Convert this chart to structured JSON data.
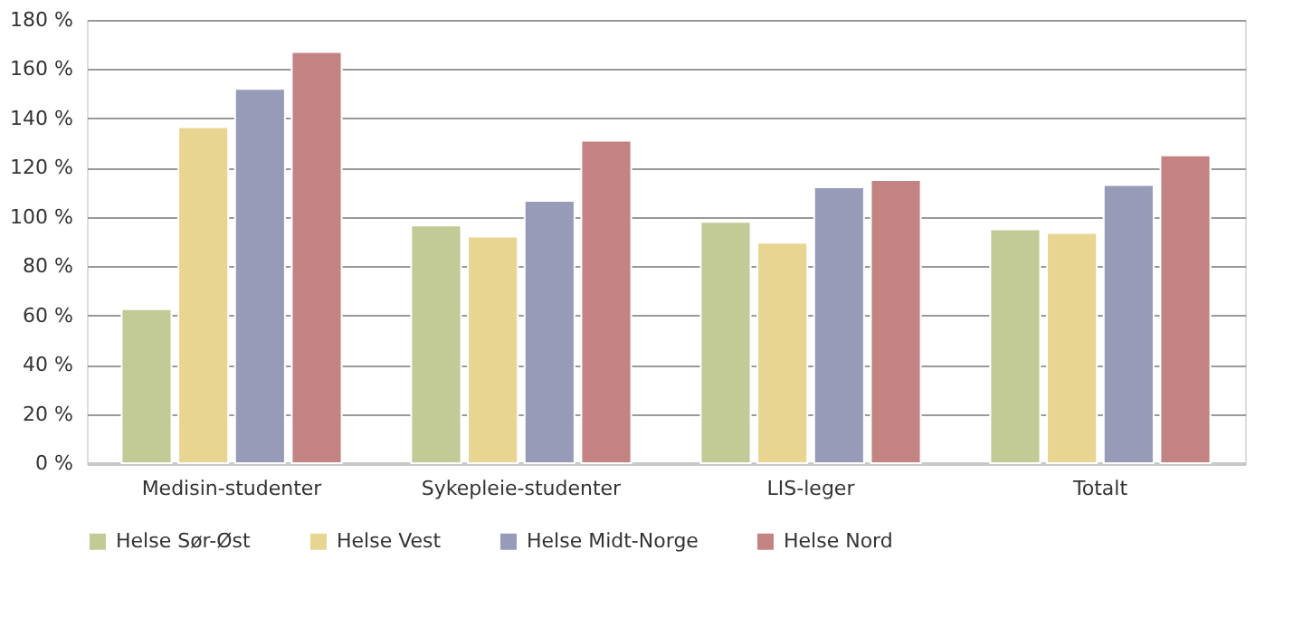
{
  "chart_data": {
    "type": "bar",
    "categories": [
      "Medisin-studenter",
      "Sykepleie-studenter",
      "LIS-leger",
      "Totalt"
    ],
    "series": [
      {
        "name": "Helse Sør-Øst",
        "color": "#c2cb96",
        "values": [
          62.5,
          96.5,
          98,
          95
        ]
      },
      {
        "name": "Helse Vest",
        "color": "#e9d592",
        "values": [
          136.5,
          92,
          89.5,
          93.5
        ]
      },
      {
        "name": "Helse Midt-Norge",
        "color": "#979bb8",
        "values": [
          152,
          106.5,
          112,
          113
        ]
      },
      {
        "name": "Helse Nord",
        "color": "#c48383",
        "values": [
          167,
          131,
          115,
          125
        ]
      }
    ],
    "ylim": [
      0,
      180
    ],
    "yticks": [
      {
        "value": 0,
        "label": "0 %"
      },
      {
        "value": 20,
        "label": "20 %"
      },
      {
        "value": 40,
        "label": "40 %"
      },
      {
        "value": 60,
        "label": "60 %"
      },
      {
        "value": 80,
        "label": "80 %"
      },
      {
        "value": 100,
        "label": "100 %"
      },
      {
        "value": 120,
        "label": "120 %"
      },
      {
        "value": 140,
        "label": "140 %"
      },
      {
        "value": 160,
        "label": "160 %"
      },
      {
        "value": 180,
        "label": "180 %"
      }
    ],
    "grid": "y",
    "legend": "bottom"
  }
}
